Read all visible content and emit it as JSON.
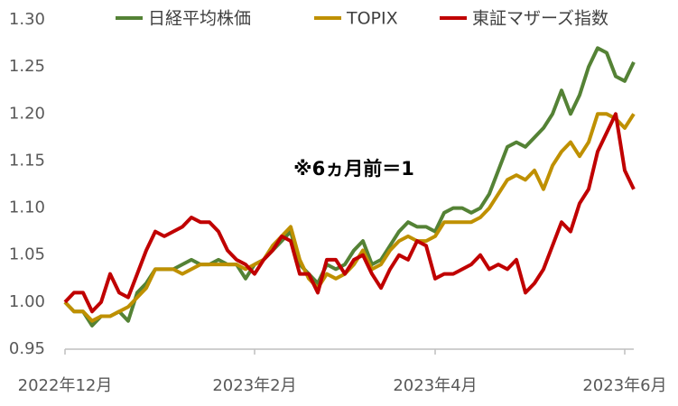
{
  "chart_data": {
    "type": "line",
    "annotation": "※6ヵ月前＝1",
    "categories": [
      "2022年12月",
      null,
      null,
      null,
      null,
      null,
      null,
      null,
      null,
      null,
      null,
      null,
      null,
      null,
      null,
      null,
      null,
      null,
      null,
      null,
      null,
      "2023年2月",
      null,
      null,
      null,
      null,
      null,
      null,
      null,
      null,
      null,
      null,
      null,
      null,
      null,
      null,
      null,
      null,
      null,
      null,
      null,
      "2023年4月",
      null,
      null,
      null,
      null,
      null,
      null,
      null,
      null,
      null,
      null,
      null,
      null,
      null,
      null,
      null,
      null,
      null,
      null,
      null,
      null,
      "2023年6月",
      null
    ],
    "series": [
      {
        "name": "日経平均株価",
        "color": "#548235",
        "values": [
          1.0,
          0.99,
          0.99,
          0.975,
          0.985,
          0.985,
          0.99,
          0.98,
          1.01,
          1.02,
          1.035,
          1.035,
          1.035,
          1.04,
          1.045,
          1.04,
          1.04,
          1.045,
          1.04,
          1.04,
          1.025,
          1.04,
          1.045,
          1.055,
          1.065,
          1.075,
          1.04,
          1.03,
          1.02,
          1.04,
          1.035,
          1.04,
          1.055,
          1.065,
          1.04,
          1.045,
          1.06,
          1.075,
          1.085,
          1.08,
          1.08,
          1.075,
          1.095,
          1.1,
          1.1,
          1.095,
          1.1,
          1.115,
          1.14,
          1.165,
          1.17,
          1.165,
          1.175,
          1.185,
          1.2,
          1.225,
          1.2,
          1.22,
          1.25,
          1.27,
          1.265,
          1.24,
          1.235,
          1.255
        ]
      },
      {
        "name": "TOPIX",
        "color": "#bf9000",
        "values": [
          1.0,
          0.99,
          0.99,
          0.98,
          0.985,
          0.985,
          0.99,
          0.995,
          1.005,
          1.015,
          1.035,
          1.035,
          1.035,
          1.03,
          1.035,
          1.04,
          1.04,
          1.04,
          1.04,
          1.04,
          1.035,
          1.04,
          1.045,
          1.06,
          1.07,
          1.08,
          1.045,
          1.025,
          1.015,
          1.03,
          1.025,
          1.03,
          1.04,
          1.055,
          1.035,
          1.04,
          1.055,
          1.065,
          1.07,
          1.065,
          1.065,
          1.07,
          1.085,
          1.085,
          1.085,
          1.085,
          1.09,
          1.1,
          1.115,
          1.13,
          1.135,
          1.13,
          1.14,
          1.12,
          1.145,
          1.16,
          1.17,
          1.155,
          1.17,
          1.2,
          1.2,
          1.195,
          1.185,
          1.2
        ]
      },
      {
        "name": "東証マザーズ指数",
        "color": "#c00000",
        "values": [
          1.0,
          1.01,
          1.01,
          0.99,
          1.0,
          1.03,
          1.01,
          1.005,
          1.03,
          1.055,
          1.075,
          1.07,
          1.075,
          1.08,
          1.09,
          1.085,
          1.085,
          1.075,
          1.055,
          1.045,
          1.04,
          1.03,
          1.045,
          1.055,
          1.07,
          1.065,
          1.03,
          1.03,
          1.01,
          1.045,
          1.045,
          1.03,
          1.045,
          1.05,
          1.03,
          1.015,
          1.035,
          1.05,
          1.045,
          1.065,
          1.06,
          1.025,
          1.03,
          1.03,
          1.035,
          1.04,
          1.05,
          1.035,
          1.04,
          1.035,
          1.045,
          1.01,
          1.02,
          1.035,
          1.06,
          1.085,
          1.075,
          1.105,
          1.12,
          1.16,
          1.18,
          1.2,
          1.14,
          1.12
        ]
      }
    ],
    "ylim": [
      0.95,
      1.3
    ],
    "yticks": [
      0.95,
      {
        "value": 1,
        "label": "1.00"
      },
      1.05,
      {
        "value": 1.1,
        "label": "1.10"
      },
      1.15,
      {
        "value": 1.2,
        "label": "1.20"
      },
      1.25,
      {
        "value": 1.3,
        "label": "1.30"
      }
    ],
    "grid": false,
    "legend": "top"
  }
}
